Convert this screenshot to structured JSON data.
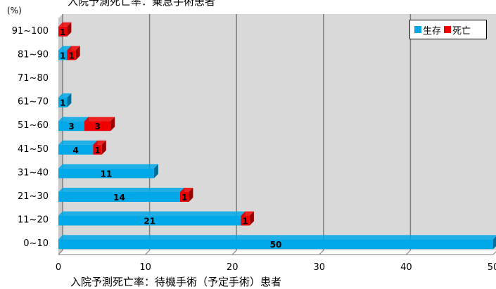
{
  "chart_data": {
    "type": "bar",
    "orientation": "horizontal",
    "stacked": true,
    "title": "入院予測死亡率：乗急手術患者",
    "subtitle": "入院予測死亡率：待機手術（予定手術）患者",
    "unit_label": "(%)",
    "categories": [
      "0~10",
      "11~20",
      "21~30",
      "31~40",
      "41~50",
      "51~60",
      "61~70",
      "71~80",
      "81~90",
      "91~100"
    ],
    "series": [
      {
        "name": "生存",
        "color": "#00a8e8",
        "values": [
          50,
          21,
          14,
          11,
          4,
          3,
          1,
          0,
          1,
          0
        ]
      },
      {
        "name": "死亡",
        "color": "#ee0000",
        "values": [
          0,
          1,
          1,
          0,
          1,
          3,
          0,
          0,
          1,
          1
        ]
      }
    ],
    "xlim": [
      0,
      50
    ],
    "xticks": [
      0,
      10,
      20,
      30,
      40,
      50
    ],
    "grid": true,
    "legend": "top-right"
  }
}
